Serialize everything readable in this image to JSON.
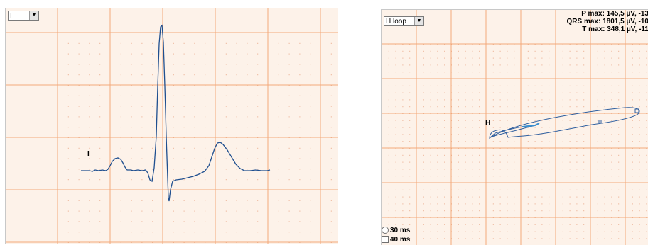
{
  "colors": {
    "grid_major": "#f4a97a",
    "grid_minor": "#e9a888",
    "background": "#fdf2e9",
    "trace": "#1f4f8f",
    "loop": "#2f5f9f"
  },
  "left_panel": {
    "lead_select": {
      "value": "I",
      "icon": "chevron-down-icon"
    },
    "lead_label": "I"
  },
  "right_panel": {
    "loop_select": {
      "value": "H loop",
      "icon": "chevron-down-icon"
    },
    "max_info": {
      "p": "P max: 145,5 µV, -13",
      "qrs": "QRS max: 1801,5 µV, -10",
      "t": "T max: 348,1 µV, -11"
    },
    "loop_label": "H",
    "options": [
      {
        "label": "30 ms"
      },
      {
        "label": "40 ms"
      }
    ]
  }
}
